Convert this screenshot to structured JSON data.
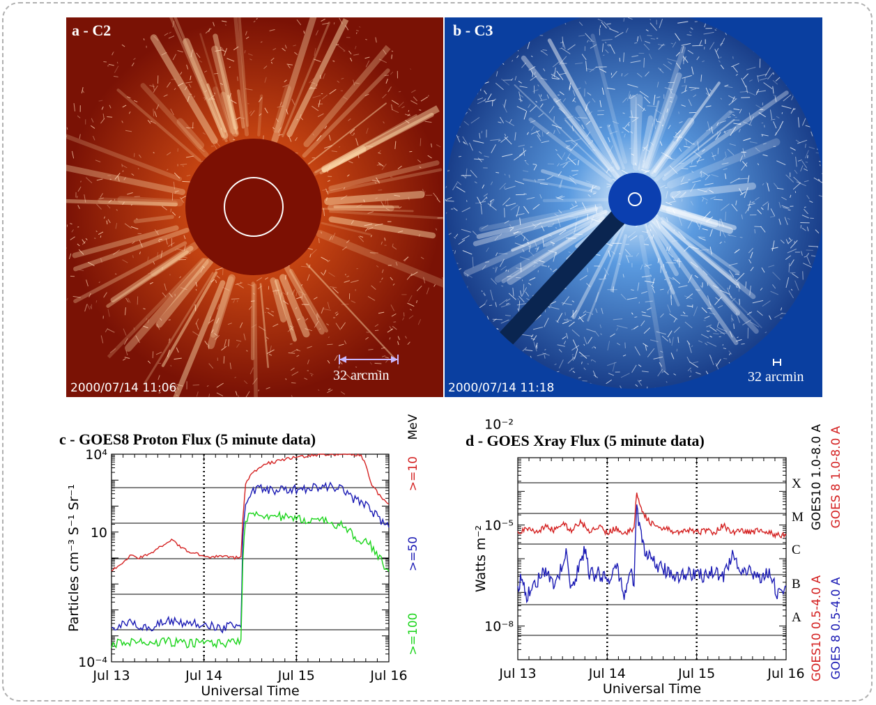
{
  "panel_a": {
    "label": "a - C2",
    "timestamp": "2000/07/14 11:06",
    "scale_label": "32 arcmin",
    "colors": {
      "background": "#7a1205",
      "disk": "#7c1003"
    }
  },
  "panel_b": {
    "label": "b - C3",
    "timestamp": "2000/07/14 11:18",
    "scale_label": "32 arcmin",
    "colors": {
      "background": "#0a3fa0",
      "disk": "#0b3fb0"
    }
  },
  "chart_data": [
    {
      "type": "line",
      "panel": "c",
      "title": "c - GOES8 Proton Flux (5 minute data)",
      "xlabel": "Universal Time",
      "ylabel": "Particles cm⁻³ S⁻¹ Sr⁻¹",
      "yscale": "log",
      "ylim": [
        0.0001,
        10000
      ],
      "y_ticks": [
        "10⁴",
        "10",
        "10⁻⁴"
      ],
      "x_ticks": [
        "Jul 13",
        "Jul 14",
        "Jul 15",
        "Jul 16"
      ],
      "xlim": [
        0,
        3
      ],
      "grid": "horizontal",
      "legend_unit": "MeV",
      "series": [
        {
          "name": ">=10",
          "color": "#d42020",
          "x": [
            0,
            0.1,
            0.2,
            0.3,
            0.4,
            0.5,
            0.6,
            0.65,
            0.7,
            0.8,
            0.9,
            1.0,
            1.1,
            1.2,
            1.3,
            1.4,
            1.42,
            1.45,
            1.5,
            1.6,
            1.7,
            1.8,
            1.9,
            2.0,
            2.1,
            2.2,
            2.3,
            2.4,
            2.5,
            2.6,
            2.7,
            2.75,
            2.8,
            2.9,
            3.0
          ],
          "values": [
            0.3,
            0.6,
            1.2,
            1.0,
            1.3,
            2.5,
            4,
            5,
            3.5,
            2,
            1.5,
            1.2,
            1.1,
            1.2,
            1.0,
            1.1,
            30,
            800,
            1500,
            3000,
            4500,
            5500,
            7000,
            7500,
            8000,
            9500,
            10000,
            10000,
            10000,
            10000,
            9000,
            4000,
            800,
            250,
            120
          ]
        },
        {
          "name": ">=50",
          "color": "#1a1ab4",
          "x": [
            0,
            0.2,
            0.4,
            0.6,
            0.8,
            1.0,
            1.2,
            1.4,
            1.42,
            1.45,
            1.5,
            1.6,
            1.8,
            2.0,
            2.2,
            2.4,
            2.5,
            2.55,
            2.6,
            2.7,
            2.8,
            2.9,
            3.0
          ],
          "values": [
            0.002,
            0.003,
            0.002,
            0.004,
            0.003,
            0.003,
            0.002,
            0.003,
            5,
            150,
            300,
            500,
            400,
            450,
            500,
            550,
            450,
            300,
            200,
            150,
            80,
            30,
            15
          ]
        },
        {
          "name": ">=100",
          "color": "#18d418",
          "x": [
            0,
            0.2,
            0.4,
            0.6,
            0.8,
            1.0,
            1.2,
            1.4,
            1.42,
            1.45,
            1.5,
            1.6,
            1.8,
            2.0,
            2.2,
            2.3,
            2.4,
            2.5,
            2.6,
            2.7,
            2.8,
            2.9,
            3.0
          ],
          "values": [
            0.0005,
            0.0006,
            0.0005,
            0.0006,
            0.0005,
            0.0006,
            0.0005,
            0.0006,
            1,
            30,
            60,
            50,
            40,
            30,
            30,
            25,
            22,
            18,
            8,
            5,
            3,
            1,
            0.3
          ]
        }
      ]
    },
    {
      "type": "line",
      "panel": "d",
      "title": "d - GOES Xray Flux (5 minute data)",
      "xlabel": "Universal Time",
      "ylabel": "Watts m⁻²",
      "yscale": "log",
      "ylim": [
        1e-09,
        0.001
      ],
      "y_ticks": [
        "10⁻²",
        "10⁻⁵",
        "10⁻⁸"
      ],
      "x_ticks": [
        "Jul 13",
        "Jul 14",
        "Jul 15",
        "Jul 16"
      ],
      "xlim": [
        0,
        3
      ],
      "grid": "horizontal",
      "flare_classes": [
        "X",
        "M",
        "C",
        "B",
        "A"
      ],
      "series": [
        {
          "name": "GOES10 1.0-8.0 A",
          "color": "#000000",
          "x": [
            0,
            0.2,
            0.4,
            0.6,
            0.8,
            1.0,
            1.2,
            1.3,
            1.35,
            1.4,
            1.5,
            1.6,
            1.8,
            2.0,
            2.2,
            2.4,
            2.6,
            2.8,
            3.0
          ],
          "values": [
            6e-06,
            7e-06,
            6e-06,
            9e-06,
            6e-06,
            6e-06,
            6e-06,
            5e-06,
            8e-05,
            3e-05,
            1.2e-05,
            8e-06,
            6e-06,
            6e-06,
            6e-06,
            6e-06,
            6e-06,
            5e-06,
            5e-06
          ]
        },
        {
          "name": "GOES 8 1.0-8.0 A",
          "color": "#d42020",
          "x": [
            0,
            0.1,
            0.2,
            0.3,
            0.4,
            0.5,
            0.6,
            0.7,
            0.8,
            0.9,
            1.0,
            1.1,
            1.2,
            1.3,
            1.33,
            1.36,
            1.4,
            1.45,
            1.5,
            1.6,
            1.7,
            1.8,
            1.9,
            2.0,
            2.1,
            2.2,
            2.3,
            2.4,
            2.5,
            2.6,
            2.7,
            2.8,
            2.9,
            3.0
          ],
          "values": [
            6e-06,
            8e-06,
            6e-06,
            9e-06,
            7e-06,
            1.1e-05,
            7e-06,
            1.2e-05,
            7e-06,
            9e-06,
            6e-06,
            8e-06,
            6e-06,
            7e-06,
            0.0001,
            5e-05,
            2.5e-05,
            1.5e-05,
            1.1e-05,
            8e-06,
            7e-06,
            6e-06,
            7e-06,
            6e-06,
            7e-06,
            6e-06,
            1e-05,
            6e-06,
            7e-06,
            6e-06,
            7e-06,
            6e-06,
            5e-06,
            5e-06
          ]
        },
        {
          "name": "GOES10 0.5-4.0 A",
          "color": "#d42020",
          "x": [
            0,
            0.5,
            1.0,
            1.35,
            1.5,
            2.0,
            2.5,
            3.0
          ],
          "values": [
            1.5e-07,
            4e-07,
            3e-07,
            1e-05,
            5e-07,
            3e-07,
            3e-07,
            1e-07
          ]
        },
        {
          "name": "GOES 8 0.5-4.0 A",
          "color": "#1a1ab4",
          "x": [
            0,
            0.05,
            0.1,
            0.2,
            0.3,
            0.4,
            0.5,
            0.55,
            0.6,
            0.7,
            0.75,
            0.8,
            0.9,
            1.0,
            1.1,
            1.2,
            1.25,
            1.3,
            1.33,
            1.36,
            1.4,
            1.45,
            1.5,
            1.6,
            1.7,
            1.8,
            1.9,
            2.0,
            2.1,
            2.2,
            2.3,
            2.4,
            2.5,
            2.6,
            2.7,
            2.8,
            2.9,
            3.0
          ],
          "values": [
            1.5e-07,
            3e-07,
            8e-08,
            2e-07,
            4e-07,
            1.5e-07,
            6e-07,
            1.5e-06,
            1e-07,
            8e-07,
            2e-06,
            3e-07,
            4e-07,
            2e-07,
            6e-07,
            8e-08,
            4e-07,
            2e-07,
            4e-05,
            8e-06,
            3e-06,
            1.2e-06,
            8e-07,
            5e-07,
            4e-07,
            3e-07,
            4e-07,
            3e-07,
            3.5e-07,
            4e-07,
            3e-07,
            1.5e-06,
            3e-07,
            4e-07,
            3e-07,
            4e-07,
            1e-07,
            1.5e-07
          ]
        }
      ]
    }
  ]
}
